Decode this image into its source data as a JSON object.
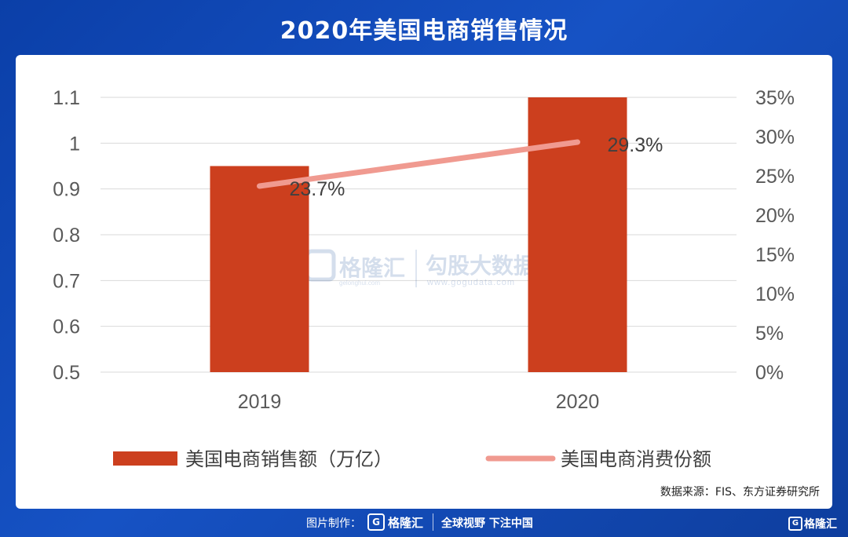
{
  "title": "2020年美国电商销售情况",
  "chart_data": {
    "type": "bar",
    "categories": [
      "2019",
      "2020"
    ],
    "series": [
      {
        "name": "美国电商销售额（万亿）",
        "kind": "bar",
        "axis": "left",
        "values": [
          0.95,
          1.1
        ],
        "color": "#cc3f1e"
      },
      {
        "name": "美国电商消费份额",
        "kind": "line",
        "axis": "right",
        "values": [
          23.7,
          29.3
        ],
        "labels": [
          "23.7%",
          "29.3%"
        ],
        "color": "#f09a90"
      }
    ],
    "y_left": {
      "min": 0.5,
      "max": 1.1,
      "ticks": [
        "0.5",
        "0.6",
        "0.7",
        "0.8",
        "0.9",
        "1",
        "1.1"
      ]
    },
    "y_right": {
      "min": 0,
      "max": 35,
      "ticks": [
        "0%",
        "5%",
        "10%",
        "15%",
        "20%",
        "25%",
        "30%",
        "35%"
      ]
    },
    "grid": true,
    "legend_position": "bottom"
  },
  "watermark": {
    "brand": "格隆汇",
    "brand_sub": "gelonghui.com",
    "brand2": "勾股大数据",
    "brand2_sub": "www.gogudata.com"
  },
  "source_text": "数据来源：FIS、东方证券研究所",
  "footer": {
    "made_by": "图片制作：",
    "logo_letter": "G",
    "brand": "格隆汇",
    "slogan": "全球视野 下注中国",
    "brand_right": "格隆汇"
  }
}
